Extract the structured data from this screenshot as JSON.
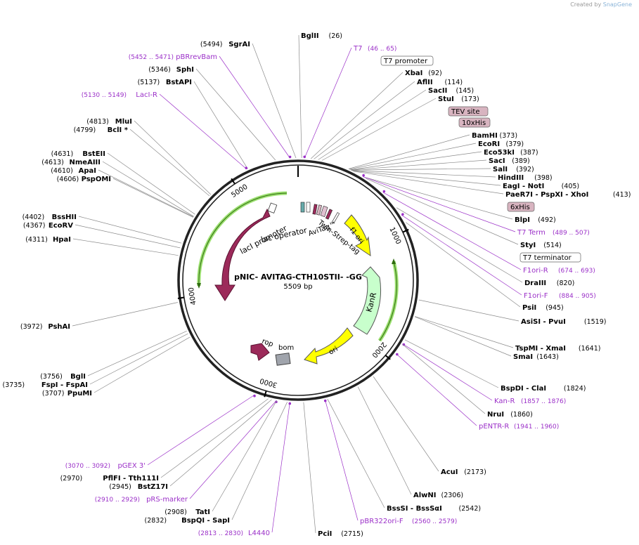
{
  "watermark": {
    "prefix": "Created by",
    "brand": "SnapGene"
  },
  "plasmid": {
    "name": "pNIC- AVITAG-CTH10STII- -GG",
    "size": "5509 bp"
  },
  "ticks": [
    "1000",
    "2000",
    "3000",
    "4000",
    "5000"
  ],
  "colors": {
    "site": "#000000",
    "primer": "#9b30c8",
    "lacI": "#9c2a5a",
    "ori": "#ffff00",
    "kanR": "#c8ffcc",
    "f1ori": "#ffff00",
    "rop": "#9c2a5a",
    "bom": "#a0a4ac",
    "promoter": "#b8f0a0",
    "tag_box": "#d8b4c0"
  },
  "sites_left": [
    {
      "pos": "(5494)",
      "name": "SgrAI",
      "kind": "site"
    },
    {
      "pos": "(5452 .. 5471)",
      "name": "pBRrevBam",
      "kind": "primer"
    },
    {
      "pos": "(5346)",
      "name": "SphI",
      "kind": "site"
    },
    {
      "pos": "(5137)",
      "name": "BstAPI",
      "kind": "site"
    },
    {
      "pos": "(5130 .. 5149)",
      "name": "LacI-R",
      "kind": "primer"
    },
    {
      "pos": "(4813)",
      "name": "MluI",
      "kind": "site"
    },
    {
      "pos": "(4799)",
      "name": "BclI *",
      "kind": "site"
    },
    {
      "pos": "(4631)",
      "name": "BstEII",
      "kind": "site"
    },
    {
      "pos": "(4613)",
      "name": "NmeAIII",
      "kind": "site"
    },
    {
      "pos": "(4610)",
      "name": "ApaI",
      "kind": "site"
    },
    {
      "pos": "(4606)",
      "name": "PspOMI",
      "kind": "site"
    },
    {
      "pos": "(4402)",
      "name": "BssHII",
      "kind": "site"
    },
    {
      "pos": "(4367)",
      "name": "EcoRV",
      "kind": "site"
    },
    {
      "pos": "(4311)",
      "name": "HpaI",
      "kind": "site"
    },
    {
      "pos": "(3972)",
      "name": "PshAI",
      "kind": "site"
    },
    {
      "pos": "(3756)",
      "name": "BglI",
      "kind": "site"
    },
    {
      "pos": "(3735)",
      "name": "FspI  - FspAI",
      "kind": "site"
    },
    {
      "pos": "(3707)",
      "name": "PpuMI",
      "kind": "site"
    },
    {
      "pos": "(3070 .. 3092)",
      "name": "pGEX 3'",
      "kind": "primer"
    },
    {
      "pos": "(2970)",
      "name": "PflFI  - Tth111I",
      "kind": "site"
    },
    {
      "pos": "(2945)",
      "name": "BstZ17I",
      "kind": "site"
    },
    {
      "pos": "(2910 .. 2929)",
      "name": "pRS-marker",
      "kind": "primer"
    },
    {
      "pos": "(2908)",
      "name": "TatI",
      "kind": "site"
    },
    {
      "pos": "(2832)",
      "name": "BspQI  - SapI",
      "kind": "site"
    },
    {
      "pos": "(2813 .. 2830)",
      "name": "L4440",
      "kind": "primer"
    }
  ],
  "sites_right": [
    {
      "name": "BglII",
      "pos": "(26)",
      "kind": "site"
    },
    {
      "name": "T7",
      "pos": "(46 .. 65)",
      "kind": "primer"
    },
    {
      "name": "T7 promoter",
      "pos": "",
      "kind": "box"
    },
    {
      "name": "XbaI",
      "pos": "(92)",
      "kind": "site"
    },
    {
      "name": "AflII",
      "pos": "(114)",
      "kind": "site"
    },
    {
      "name": "SacII",
      "pos": "(145)",
      "kind": "site"
    },
    {
      "name": "StuI",
      "pos": "(173)",
      "kind": "site"
    },
    {
      "name": "TEV site",
      "pos": "",
      "kind": "tag"
    },
    {
      "name": "10xHis",
      "pos": "",
      "kind": "tag"
    },
    {
      "name": "BamHI",
      "pos": "(373)",
      "kind": "site"
    },
    {
      "name": "EcoRI",
      "pos": "(379)",
      "kind": "site"
    },
    {
      "name": "Eco53kI",
      "pos": "(387)",
      "kind": "site"
    },
    {
      "name": "SacI",
      "pos": "(389)",
      "kind": "site"
    },
    {
      "name": "SalI",
      "pos": "(392)",
      "kind": "site"
    },
    {
      "name": "HindIII",
      "pos": "(398)",
      "kind": "site"
    },
    {
      "name": "EagI  - NotI",
      "pos": "(405)",
      "kind": "site"
    },
    {
      "name": "PaeR7I  - PspXI  - XhoI",
      "pos": "(413)",
      "kind": "site"
    },
    {
      "name": "6xHis",
      "pos": "",
      "kind": "tag"
    },
    {
      "name": "BlpI",
      "pos": "(492)",
      "kind": "site"
    },
    {
      "name": "T7 Term",
      "pos": "(489 .. 507)",
      "kind": "primer"
    },
    {
      "name": "StyI",
      "pos": "(514)",
      "kind": "site"
    },
    {
      "name": "T7 terminator",
      "pos": "",
      "kind": "box"
    },
    {
      "name": "F1ori-R",
      "pos": "(674 .. 693)",
      "kind": "primer"
    },
    {
      "name": "DraIII",
      "pos": "(820)",
      "kind": "site"
    },
    {
      "name": "F1ori-F",
      "pos": "(884 .. 905)",
      "kind": "primer"
    },
    {
      "name": "PsiI",
      "pos": "(945)",
      "kind": "site"
    },
    {
      "name": "AsiSI  - PvuI",
      "pos": "(1519)",
      "kind": "site"
    },
    {
      "name": "TspMI  - XmaI",
      "pos": "(1641)",
      "kind": "site"
    },
    {
      "name": "SmaI",
      "pos": "(1643)",
      "kind": "site"
    },
    {
      "name": "BspDI  - ClaI",
      "pos": "(1824)",
      "kind": "site"
    },
    {
      "name": "Kan-R",
      "pos": "(1857 .. 1876)",
      "kind": "primer"
    },
    {
      "name": "NruI",
      "pos": "(1860)",
      "kind": "site"
    },
    {
      "name": "pENTR-R",
      "pos": "(1941 .. 1960)",
      "kind": "primer"
    },
    {
      "name": "AcuI",
      "pos": "(2173)",
      "kind": "site"
    },
    {
      "name": "AlwNI",
      "pos": "(2306)",
      "kind": "site"
    },
    {
      "name": "BssSI  - BssSαI",
      "pos": "(2542)",
      "kind": "site"
    },
    {
      "name": "pBR322ori-F",
      "pos": "(2560 .. 2579)",
      "kind": "primer"
    },
    {
      "name": "PciI",
      "pos": "(2715)",
      "kind": "site"
    }
  ],
  "features": [
    "lacI",
    "lacI promoter",
    "lac operator",
    "AviTag™",
    "Twin-Strep-tag",
    "f1 ori",
    "KanR",
    "ori",
    "rop",
    "bom"
  ]
}
